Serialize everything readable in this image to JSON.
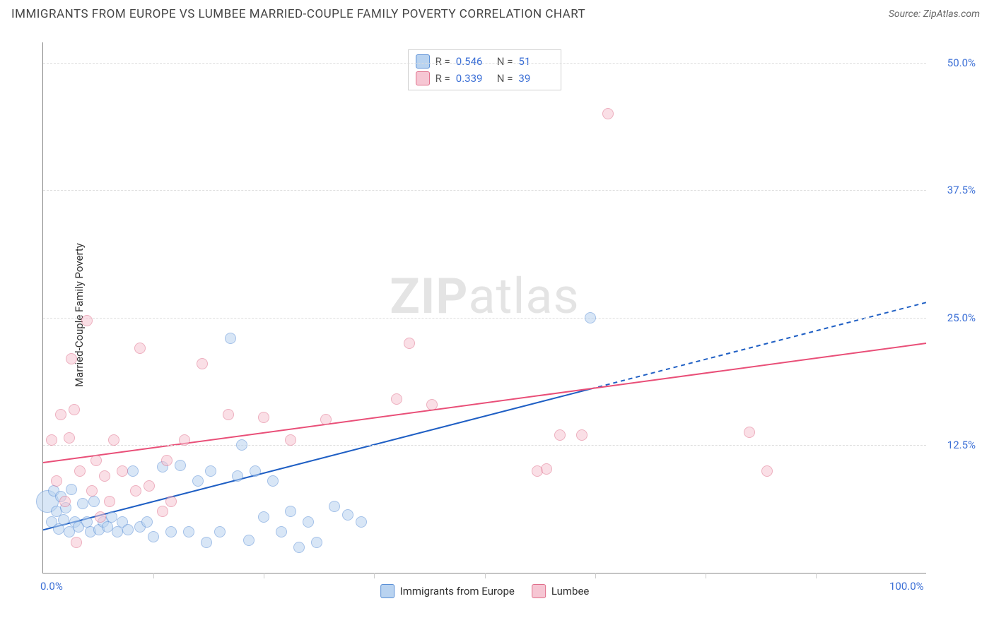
{
  "header": {
    "title": "IMMIGRANTS FROM EUROPE VS LUMBEE MARRIED-COUPLE FAMILY POVERTY CORRELATION CHART",
    "source_prefix": "Source: ",
    "source_name": "ZipAtlas.com"
  },
  "watermark": {
    "left": "ZIP",
    "right": "atlas"
  },
  "chart": {
    "type": "scatter",
    "ylabel": "Married-Couple Family Poverty",
    "background_color": "#ffffff",
    "grid_color": "#dddddd",
    "axis_color": "#888888",
    "tick_label_color": "#3b6fd6",
    "xlim": [
      0,
      100
    ],
    "ylim": [
      0,
      52
    ],
    "xtick_labels": {
      "0": "0.0%",
      "100": "100.0%"
    },
    "xtick_positions_minor": [
      12.5,
      25,
      37.5,
      50,
      62.5,
      75,
      87.5
    ],
    "ytick_labels": {
      "12.5": "12.5%",
      "25": "25.0%",
      "37.5": "37.5%",
      "50": "50.0%"
    },
    "series": [
      {
        "name": "Immigrants from Europe",
        "fill": "#b9d3f0",
        "stroke": "#5a8fd6",
        "fill_opacity": 0.55,
        "marker_r": 8,
        "trend": {
          "color": "#1f5fc4",
          "width": 2,
          "y_at_x0": 4.2,
          "y_at_x100": 26.5,
          "solid_until_x": 62,
          "dash": "6 5"
        },
        "R": "0.546",
        "N": "51",
        "points": [
          {
            "x": 0.5,
            "y": 7.0,
            "r": 16
          },
          {
            "x": 1.0,
            "y": 5.0
          },
          {
            "x": 1.2,
            "y": 8.0
          },
          {
            "x": 1.5,
            "y": 6.0
          },
          {
            "x": 1.8,
            "y": 4.3
          },
          {
            "x": 2.0,
            "y": 7.5
          },
          {
            "x": 2.3,
            "y": 5.2
          },
          {
            "x": 2.6,
            "y": 6.4
          },
          {
            "x": 3.0,
            "y": 4.0
          },
          {
            "x": 3.2,
            "y": 8.2
          },
          {
            "x": 3.6,
            "y": 5.0
          },
          {
            "x": 4.0,
            "y": 4.5
          },
          {
            "x": 4.5,
            "y": 6.8
          },
          {
            "x": 5.0,
            "y": 5.0
          },
          {
            "x": 5.4,
            "y": 4.0
          },
          {
            "x": 5.8,
            "y": 7.0
          },
          {
            "x": 6.3,
            "y": 4.2
          },
          {
            "x": 6.8,
            "y": 5.0
          },
          {
            "x": 7.3,
            "y": 4.5
          },
          {
            "x": 7.8,
            "y": 5.5
          },
          {
            "x": 8.4,
            "y": 4.0
          },
          {
            "x": 9.0,
            "y": 5.0
          },
          {
            "x": 9.6,
            "y": 4.2
          },
          {
            "x": 10.2,
            "y": 10.0
          },
          {
            "x": 11.0,
            "y": 4.5
          },
          {
            "x": 11.8,
            "y": 5.0
          },
          {
            "x": 12.5,
            "y": 3.5
          },
          {
            "x": 13.5,
            "y": 10.4
          },
          {
            "x": 14.5,
            "y": 4.0
          },
          {
            "x": 15.5,
            "y": 10.5
          },
          {
            "x": 16.5,
            "y": 4.0
          },
          {
            "x": 17.5,
            "y": 9.0
          },
          {
            "x": 18.5,
            "y": 3.0
          },
          {
            "x": 19.0,
            "y": 10.0
          },
          {
            "x": 20.0,
            "y": 4.0
          },
          {
            "x": 21.2,
            "y": 23.0
          },
          {
            "x": 22.0,
            "y": 9.5
          },
          {
            "x": 22.5,
            "y": 12.5
          },
          {
            "x": 23.3,
            "y": 3.2
          },
          {
            "x": 24.0,
            "y": 10.0
          },
          {
            "x": 25.0,
            "y": 5.5
          },
          {
            "x": 26.0,
            "y": 9.0
          },
          {
            "x": 27.0,
            "y": 4.0
          },
          {
            "x": 28.0,
            "y": 6.0
          },
          {
            "x": 29.0,
            "y": 2.5
          },
          {
            "x": 30.0,
            "y": 5.0
          },
          {
            "x": 31.0,
            "y": 3.0
          },
          {
            "x": 33.0,
            "y": 6.5
          },
          {
            "x": 34.5,
            "y": 5.7
          },
          {
            "x": 36.0,
            "y": 5.0
          },
          {
            "x": 62.0,
            "y": 25.0
          }
        ]
      },
      {
        "name": "Lumbee",
        "fill": "#f6c6d3",
        "stroke": "#e06f8b",
        "fill_opacity": 0.55,
        "marker_r": 8,
        "trend": {
          "color": "#e94f78",
          "width": 2,
          "y_at_x0": 10.8,
          "y_at_x100": 22.5,
          "solid_until_x": 100,
          "dash": ""
        },
        "R": "0.339",
        "N": "39",
        "points": [
          {
            "x": 1.0,
            "y": 13.0
          },
          {
            "x": 1.5,
            "y": 9.0
          },
          {
            "x": 2.0,
            "y": 15.5
          },
          {
            "x": 2.5,
            "y": 7.0
          },
          {
            "x": 3.0,
            "y": 13.2
          },
          {
            "x": 3.2,
            "y": 21.0
          },
          {
            "x": 3.5,
            "y": 16.0
          },
          {
            "x": 3.8,
            "y": 3.0
          },
          {
            "x": 4.2,
            "y": 10.0
          },
          {
            "x": 5.0,
            "y": 24.7
          },
          {
            "x": 5.5,
            "y": 8.0
          },
          {
            "x": 6.0,
            "y": 11.0
          },
          {
            "x": 7.0,
            "y": 9.5
          },
          {
            "x": 7.5,
            "y": 7.0
          },
          {
            "x": 8.0,
            "y": 13.0
          },
          {
            "x": 9.0,
            "y": 10.0
          },
          {
            "x": 10.5,
            "y": 8.0
          },
          {
            "x": 11.0,
            "y": 22.0
          },
          {
            "x": 12.0,
            "y": 8.5
          },
          {
            "x": 14.0,
            "y": 11.0
          },
          {
            "x": 14.5,
            "y": 7.0
          },
          {
            "x": 16.0,
            "y": 13.0
          },
          {
            "x": 18.0,
            "y": 20.5
          },
          {
            "x": 21.0,
            "y": 15.5
          },
          {
            "x": 25.0,
            "y": 15.2
          },
          {
            "x": 28.0,
            "y": 13.0
          },
          {
            "x": 32.0,
            "y": 15.0
          },
          {
            "x": 40.0,
            "y": 17.0
          },
          {
            "x": 41.5,
            "y": 22.5
          },
          {
            "x": 44.0,
            "y": 16.5
          },
          {
            "x": 56.0,
            "y": 10.0
          },
          {
            "x": 57.0,
            "y": 10.2
          },
          {
            "x": 58.5,
            "y": 13.5
          },
          {
            "x": 61.0,
            "y": 13.5
          },
          {
            "x": 64.0,
            "y": 45.0
          },
          {
            "x": 80.0,
            "y": 13.8
          },
          {
            "x": 82.0,
            "y": 10.0
          },
          {
            "x": 13.5,
            "y": 6.0
          },
          {
            "x": 6.5,
            "y": 5.5
          }
        ]
      }
    ],
    "stat_legend_labels": {
      "r": "R =",
      "n": "N ="
    }
  }
}
